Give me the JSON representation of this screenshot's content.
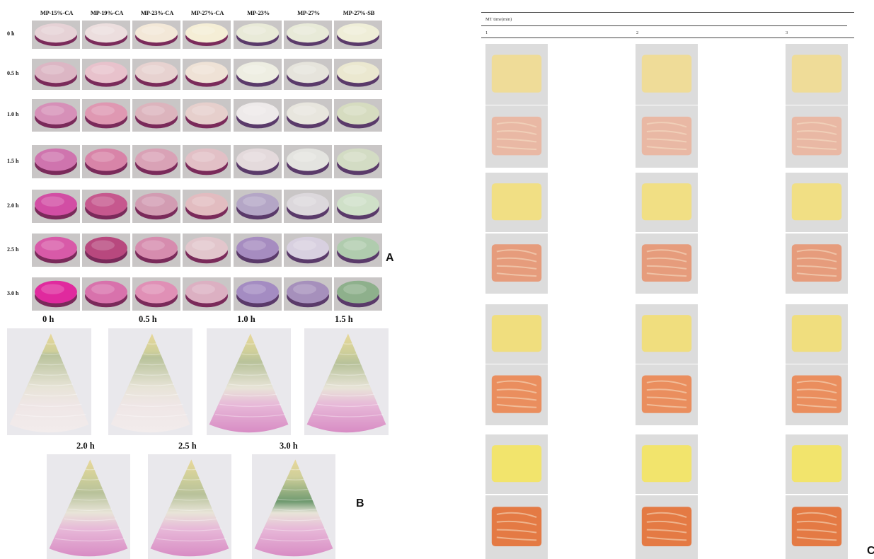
{
  "panel_a": {
    "columns": [
      "MP-15%-CA",
      "MP-19%-CA",
      "MP-23%-CA",
      "MP-27%-CA",
      "MP-23%",
      "MP-27%",
      "MP-27%-SB"
    ],
    "rows": [
      "0 h",
      "0.5 h",
      "1.0 h",
      "1.5 h",
      "2.0 h",
      "2.5 h",
      "3.0 h"
    ],
    "letter": "A",
    "disc_colors": [
      [
        "#e6d2d6",
        "#ecdede",
        "#f3e8d8",
        "#f5eed6",
        "#e9ead8",
        "#e8ead8",
        "#efeed8"
      ],
      [
        "#dcb6c4",
        "#e8c2cc",
        "#e7d2d0",
        "#efe2d6",
        "#eeeee2",
        "#e6e4dc",
        "#ebe8d0"
      ],
      [
        "#d690b8",
        "#df98b2",
        "#dcb4bd",
        "#e6cfcc",
        "#eeeaea",
        "#e8e6de",
        "#d6dcc0"
      ],
      [
        "#cf74ae",
        "#d884a8",
        "#d9a2b6",
        "#e2c0c6",
        "#e4dadc",
        "#e4e4e0",
        "#d3dcc4"
      ],
      [
        "#d24ea4",
        "#c6588e",
        "#d29cb2",
        "#e2bcc0",
        "#b4a6c6",
        "#dcd8dc",
        "#cfe0c8"
      ],
      [
        "#d85aa8",
        "#b8487e",
        "#d68cae",
        "#e2c6cc",
        "#a68cc0",
        "#d8d0e0",
        "#b0ccae"
      ],
      [
        "#e02a9e",
        "#d872ac",
        "#e090b6",
        "#dcb0c2",
        "#a48cc2",
        "#a690bc",
        "#8eb08c"
      ]
    ]
  },
  "panel_b": {
    "time_labels": [
      "0 h",
      "0.5 h",
      "1.0 h",
      "1.5 h",
      "2.0 h",
      "2.5 h",
      "3.0 h"
    ],
    "letter": "B"
  },
  "panel_c": {
    "header": "MT time(min)",
    "columns": [
      "1",
      "2",
      "3"
    ],
    "letter": "C"
  }
}
